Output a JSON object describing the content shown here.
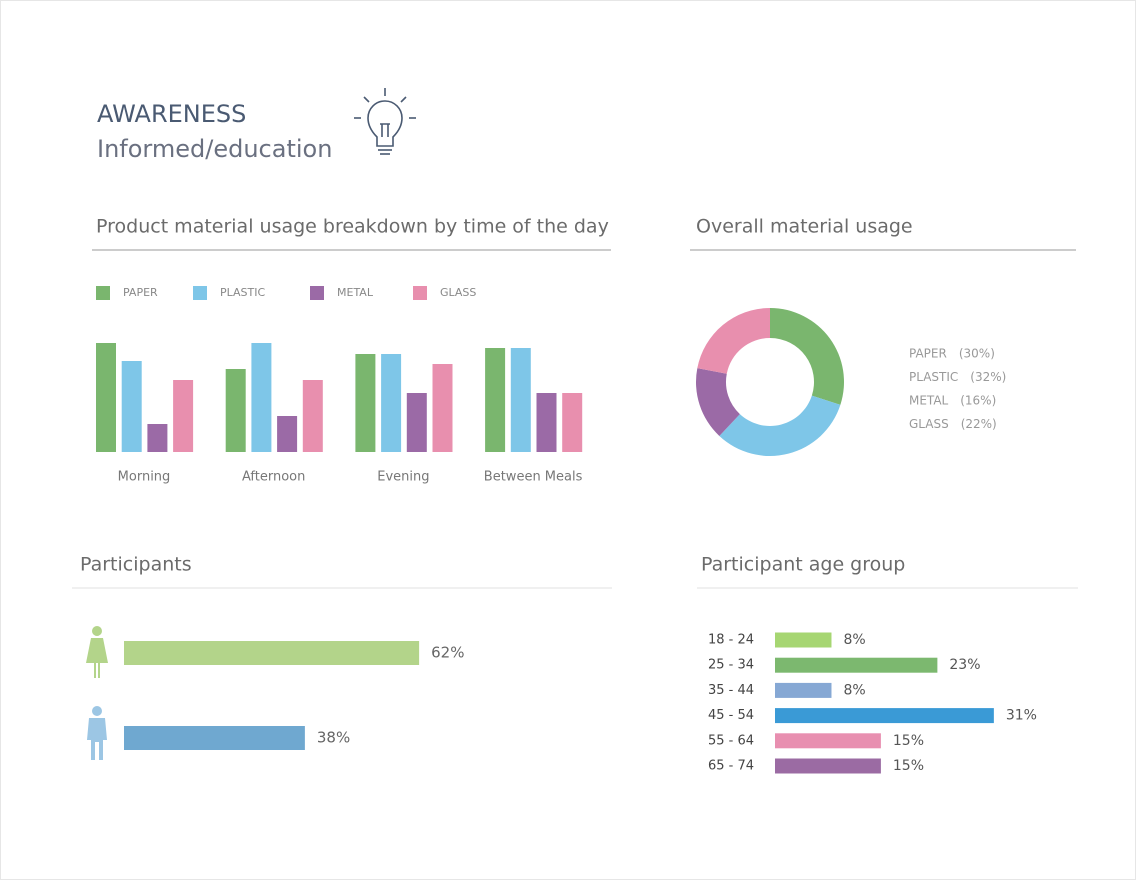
{
  "header": {
    "title": "AWARENESS",
    "subtitle": "Informed/education"
  },
  "chart_data": [
    {
      "type": "bar",
      "title": "Product material usage breakdown by time of the day",
      "categories": [
        "Morning",
        "Afternoon",
        "Evening",
        "Between Meals"
      ],
      "series": [
        {
          "name": "PAPER",
          "color": "#7ab66e",
          "values": [
            109,
            83,
            98,
            104
          ]
        },
        {
          "name": "PLASTIC",
          "color": "#7ec6e8",
          "values": [
            91,
            109,
            98,
            104
          ]
        },
        {
          "name": "METAL",
          "color": "#9b6aa6",
          "values": [
            28,
            36,
            59,
            59
          ]
        },
        {
          "name": "GLASS",
          "color": "#e88fae",
          "values": [
            72,
            72,
            88,
            59
          ]
        }
      ]
    },
    {
      "type": "donut",
      "title": "Overall material usage",
      "categories": [
        "PAPER",
        "PLASTIC",
        "METAL",
        "GLASS"
      ],
      "values": [
        30,
        32,
        16,
        22
      ],
      "value_labels": [
        "(30%)",
        "(32%)",
        "(16%)",
        "(22%)"
      ],
      "colors": [
        "#7ab66e",
        "#7ec6e8",
        "#9b6aa6",
        "#e88fae"
      ]
    },
    {
      "type": "hbar",
      "title": "Participants",
      "values": [
        62,
        38
      ],
      "value_labels": [
        "62%",
        "38%"
      ],
      "colors": [
        "#b3d48a",
        "#6fa8d0"
      ]
    },
    {
      "type": "hbar",
      "title": "Participant age group",
      "categories": [
        "18 - 24",
        "25 - 34",
        "35 - 44",
        "45 - 54",
        "55 - 64",
        "65 - 74"
      ],
      "values": [
        8,
        23,
        8,
        31,
        15,
        15
      ],
      "value_labels": [
        "8%",
        "23%",
        "8%",
        "31%",
        "15%",
        "15%"
      ],
      "colors": [
        "#a6d672",
        "#7cb86f",
        "#86a8d4",
        "#3a9ad6",
        "#e88fb0",
        "#9b6ba3"
      ]
    }
  ]
}
